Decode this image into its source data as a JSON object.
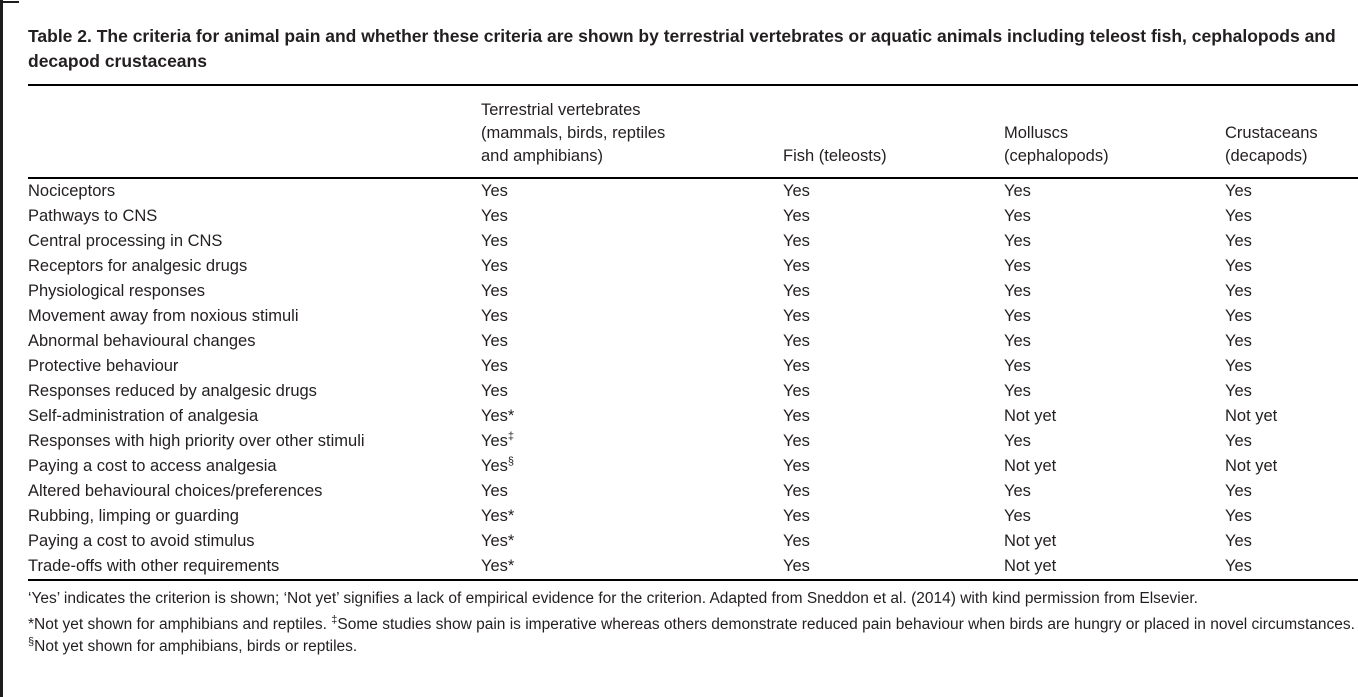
{
  "colors": {
    "background": "#ffffff",
    "text": "#231f20",
    "rule": "#000000"
  },
  "caption": "Table 2. The criteria for animal pain and whether these criteria are shown by terrestrial vertebrates or aquatic animals including teleost fish, cephalopods and decapod crustaceans",
  "table": {
    "headers": {
      "criterion": "",
      "terrestrial": "Terrestrial vertebrates\n(mammals, birds, reptiles\nand amphibians)",
      "fish": "Fish (teleosts)",
      "molluscs": "Molluscs\n(cephalopods)",
      "crustaceans": "Crustaceans\n(decapods)"
    },
    "rows": [
      {
        "criterion": "Nociceptors",
        "terrestrial": "Yes",
        "terrestrial_sup": "",
        "fish": "Yes",
        "molluscs": "Yes",
        "crustaceans": "Yes"
      },
      {
        "criterion": "Pathways to CNS",
        "terrestrial": "Yes",
        "terrestrial_sup": "",
        "fish": "Yes",
        "molluscs": "Yes",
        "crustaceans": "Yes"
      },
      {
        "criterion": "Central processing in CNS",
        "terrestrial": "Yes",
        "terrestrial_sup": "",
        "fish": "Yes",
        "molluscs": "Yes",
        "crustaceans": "Yes"
      },
      {
        "criterion": "Receptors for analgesic drugs",
        "terrestrial": "Yes",
        "terrestrial_sup": "",
        "fish": "Yes",
        "molluscs": "Yes",
        "crustaceans": "Yes"
      },
      {
        "criterion": "Physiological responses",
        "terrestrial": "Yes",
        "terrestrial_sup": "",
        "fish": "Yes",
        "molluscs": "Yes",
        "crustaceans": "Yes"
      },
      {
        "criterion": "Movement away from noxious stimuli",
        "terrestrial": "Yes",
        "terrestrial_sup": "",
        "fish": "Yes",
        "molluscs": "Yes",
        "crustaceans": "Yes"
      },
      {
        "criterion": "Abnormal behavioural changes",
        "terrestrial": "Yes",
        "terrestrial_sup": "",
        "fish": "Yes",
        "molluscs": "Yes",
        "crustaceans": "Yes"
      },
      {
        "criterion": "Protective behaviour",
        "terrestrial": "Yes",
        "terrestrial_sup": "",
        "fish": "Yes",
        "molluscs": "Yes",
        "crustaceans": "Yes"
      },
      {
        "criterion": "Responses reduced by analgesic drugs",
        "terrestrial": "Yes",
        "terrestrial_sup": "",
        "fish": "Yes",
        "molluscs": "Yes",
        "crustaceans": "Yes"
      },
      {
        "criterion": "Self-administration of analgesia",
        "terrestrial": "Yes*",
        "terrestrial_sup": "",
        "fish": "Yes",
        "molluscs": "Not yet",
        "crustaceans": "Not yet"
      },
      {
        "criterion": "Responses with high priority over other stimuli",
        "terrestrial": "Yes",
        "terrestrial_sup": "‡",
        "fish": "Yes",
        "molluscs": "Yes",
        "crustaceans": "Yes"
      },
      {
        "criterion": "Paying a cost to access analgesia",
        "terrestrial": "Yes",
        "terrestrial_sup": "§",
        "fish": "Yes",
        "molluscs": "Not yet",
        "crustaceans": "Not yet"
      },
      {
        "criterion": "Altered behavioural choices/preferences",
        "terrestrial": "Yes",
        "terrestrial_sup": "",
        "fish": "Yes",
        "molluscs": "Yes",
        "crustaceans": "Yes"
      },
      {
        "criterion": "Rubbing, limping or guarding",
        "terrestrial": "Yes*",
        "terrestrial_sup": "",
        "fish": "Yes",
        "molluscs": "Yes",
        "crustaceans": "Yes"
      },
      {
        "criterion": "Paying a cost to avoid stimulus",
        "terrestrial": "Yes*",
        "terrestrial_sup": "",
        "fish": "Yes",
        "molluscs": "Not yet",
        "crustaceans": "Yes"
      },
      {
        "criterion": "Trade-offs with other requirements",
        "terrestrial": "Yes*",
        "terrestrial_sup": "",
        "fish": "Yes",
        "molluscs": "Not yet",
        "crustaceans": "Yes"
      }
    ]
  },
  "footnotes": {
    "note_general": "‘Yes’ indicates the criterion is shown; ‘Not yet’ signifies a lack of empirical evidence for the criterion. Adapted from Sneddon et al. (2014) with kind permission from Elsevier.",
    "note_symbols_part1": "*Not yet shown for amphibians and reptiles. ",
    "note_symbols_sup1": "‡",
    "note_symbols_part2": "Some studies show pain is imperative whereas others demonstrate reduced pain behaviour when birds are hungry or placed in novel circumstances. ",
    "note_symbols_sup2": "§",
    "note_symbols_part3": "Not yet shown for amphibians, birds or reptiles."
  }
}
